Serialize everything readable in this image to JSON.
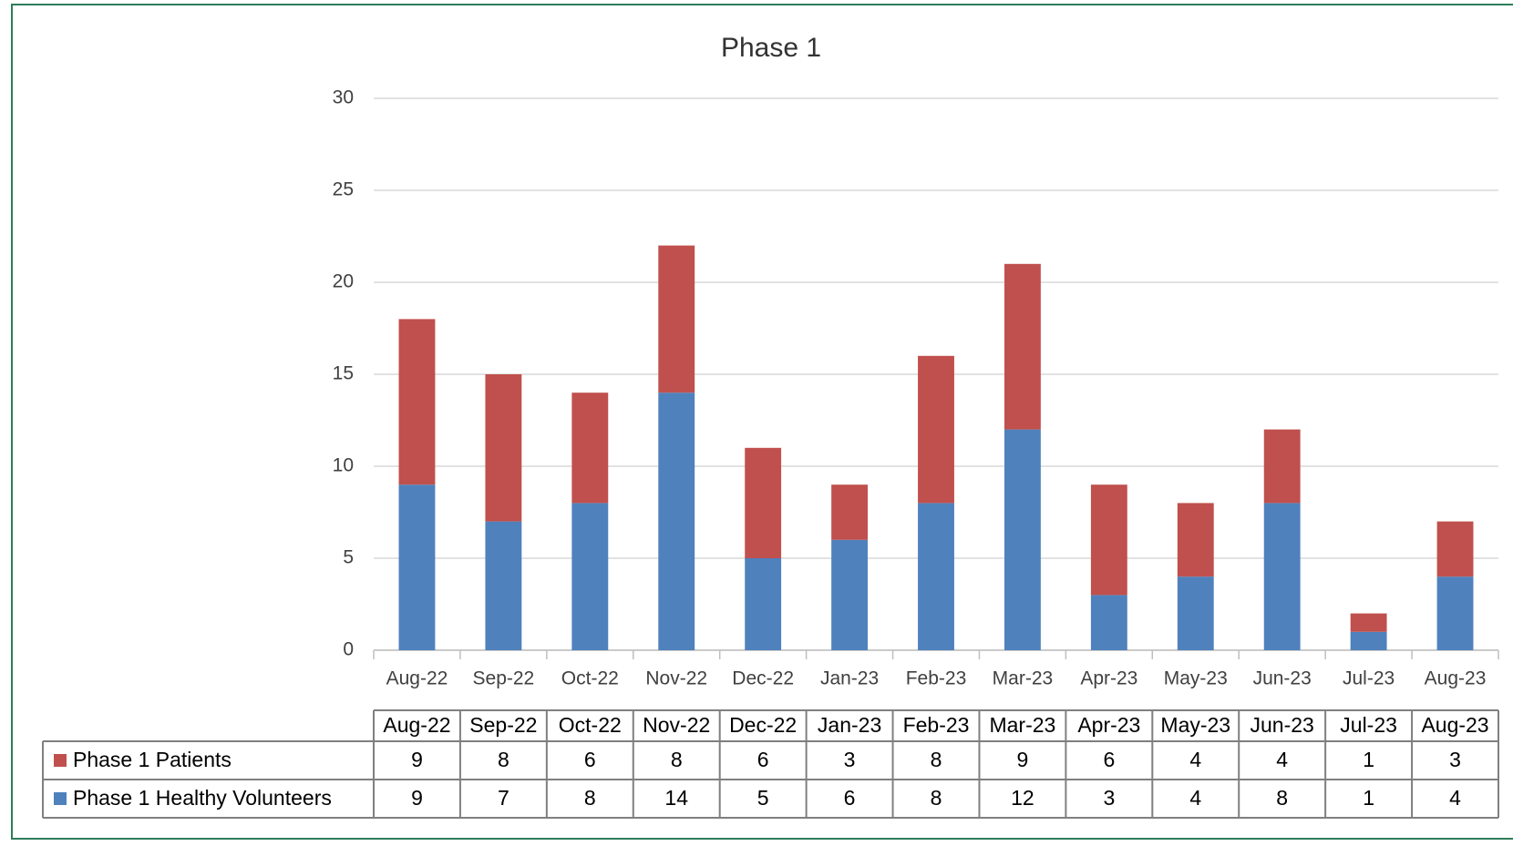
{
  "chart_data": {
    "type": "bar",
    "stacked": true,
    "title": "Phase 1",
    "categories": [
      "Aug-22",
      "Sep-22",
      "Oct-22",
      "Nov-22",
      "Dec-22",
      "Jan-23",
      "Feb-23",
      "Mar-23",
      "Apr-23",
      "May-23",
      "Jun-23",
      "Jul-23",
      "Aug-23"
    ],
    "series": [
      {
        "name": "Phase 1 Patients",
        "color": "#c0504d",
        "values": [
          9,
          8,
          6,
          8,
          6,
          3,
          8,
          9,
          6,
          4,
          4,
          1,
          3
        ]
      },
      {
        "name": "Phase 1 Healthy Volunteers",
        "color": "#4f81bd",
        "values": [
          9,
          7,
          8,
          14,
          5,
          6,
          8,
          12,
          3,
          4,
          8,
          1,
          4
        ]
      }
    ],
    "ylim": [
      0,
      30
    ],
    "yticks": [
      0,
      5,
      10,
      15,
      20,
      25,
      30
    ],
    "grid": true
  }
}
